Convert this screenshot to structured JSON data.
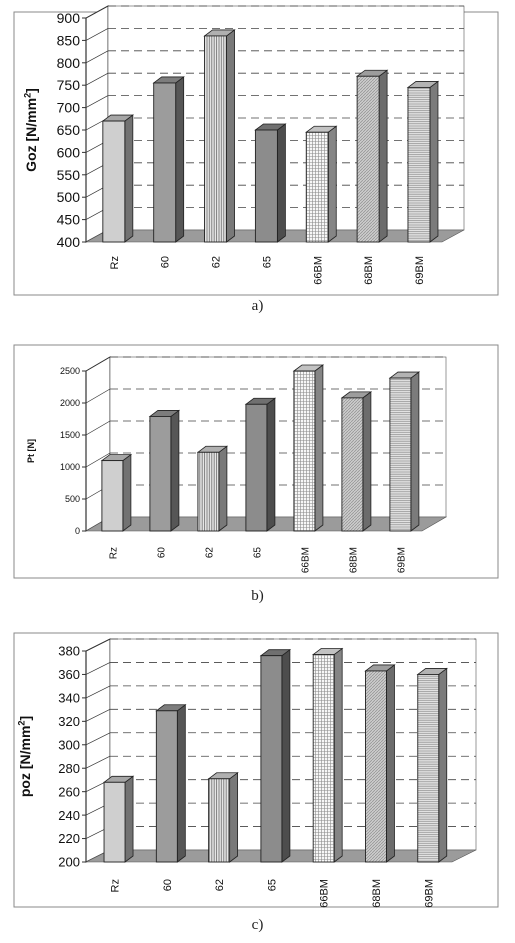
{
  "chart_data": [
    {
      "type": "bar",
      "panel_label": "a)",
      "ylabel": "Goz [N/mm²]",
      "ylabel_main": "Goz [N/mm",
      "ylabel_sup": "2",
      "ylabel_end": "]",
      "categories": [
        "Rz",
        "60",
        "62",
        "65",
        "66BM",
        "68BM",
        "69BM"
      ],
      "values": [
        670,
        755,
        860,
        650,
        645,
        770,
        745
      ],
      "ylim": [
        400,
        900
      ],
      "yticks": [
        "400",
        "450",
        "500",
        "550",
        "600",
        "650",
        "700",
        "750",
        "800",
        "850",
        "900"
      ],
      "grid": "dashed"
    },
    {
      "type": "bar",
      "panel_label": "b)",
      "ylabel": "Pt [N]",
      "ylabel_main": "Pt [N]",
      "ylabel_sup": "",
      "ylabel_end": "",
      "categories": [
        "Rz",
        "60",
        "62",
        "65",
        "66BM",
        "68BM",
        "69BM"
      ],
      "values": [
        1100,
        1790,
        1230,
        1980,
        2500,
        2080,
        2390
      ],
      "ylim": [
        0,
        2500
      ],
      "yticks": [
        "0",
        "500",
        "1000",
        "1500",
        "2000",
        "2500"
      ],
      "grid": "dashed"
    },
    {
      "type": "bar",
      "panel_label": "c)",
      "ylabel": "poz [N/mm²]",
      "ylabel_main": "poz [N/mm",
      "ylabel_sup": "2",
      "ylabel_end": "]",
      "categories": [
        "Rz",
        "60",
        "62",
        "65",
        "66BM",
        "68BM",
        "69BM"
      ],
      "values": [
        268,
        329,
        271,
        376,
        377,
        363,
        360
      ],
      "ylim": [
        200,
        380
      ],
      "yticks": [
        "200",
        "220",
        "240",
        "260",
        "280",
        "300",
        "320",
        "340",
        "360",
        "380"
      ],
      "grid": "dashed"
    }
  ],
  "colors": {
    "frame": "#8a8a8a",
    "wall": "#ffffff",
    "floor": "#9b9b9b",
    "bar_front": [
      "#cfcfcf",
      "#9c9c9c",
      "#dcdcdc",
      "#8c8c8c",
      "#f2f2f2",
      "#c4c4c4",
      "#e0e0e0"
    ],
    "bar_pattern": [
      "none",
      "none",
      "vlines",
      "none",
      "grid",
      "diag",
      "hlines"
    ]
  }
}
